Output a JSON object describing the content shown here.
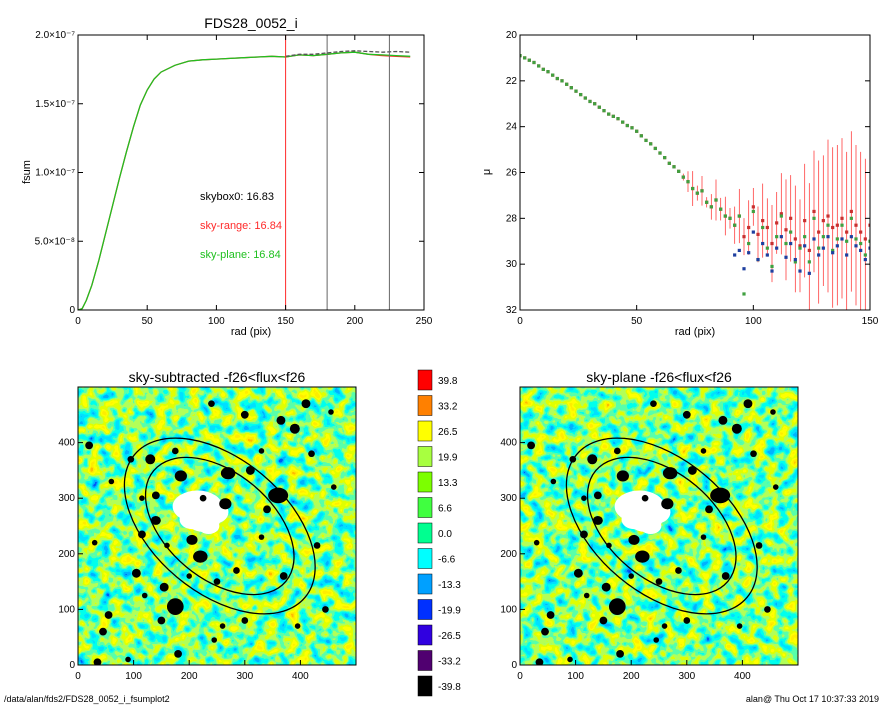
{
  "footer": {
    "path": "/data/alan/fds2/FDS28_0052_i_fsumplot2",
    "stamp": "alan@  Thu Oct 17 10:37:33 2019"
  },
  "chart_data": [
    {
      "id": "fsum",
      "type": "line",
      "title": "FDS28_0052_i",
      "xlabel": "rad (pix)",
      "ylabel": "fsum",
      "xlim": [
        0,
        250
      ],
      "ylim": [
        0,
        2e-07
      ],
      "xticks": [
        "0",
        "50",
        "100",
        "150",
        "200",
        "250"
      ],
      "yticks": [
        "0",
        "5.0×10⁻⁸",
        "1.0×10⁻⁷",
        "1.5×10⁻⁷",
        "2.0×10⁻⁷"
      ],
      "series": [
        {
          "color": "#ff2a2a",
          "x": [
            0,
            3,
            6,
            10,
            15,
            20,
            25,
            30,
            35,
            40,
            45,
            50,
            55,
            60,
            70,
            80,
            90,
            100,
            110,
            120,
            130,
            140,
            150,
            160,
            170,
            180,
            190,
            200,
            210,
            220,
            230,
            240
          ],
          "y": [
            0,
            1e-09,
            7e-09,
            1.8e-08,
            3.6e-08,
            5.6e-08,
            7.6e-08,
            9.6e-08,
            1.15e-07,
            1.33e-07,
            1.49e-07,
            1.6e-07,
            1.68e-07,
            1.73e-07,
            1.78e-07,
            1.81e-07,
            1.82e-07,
            1.825e-07,
            1.83e-07,
            1.835e-07,
            1.84e-07,
            1.845e-07,
            1.84e-07,
            1.855e-07,
            1.85e-07,
            1.86e-07,
            1.87e-07,
            1.875e-07,
            1.86e-07,
            1.85e-07,
            1.845e-07,
            1.84e-07
          ]
        },
        {
          "color": "#20c020",
          "x": [
            0,
            3,
            6,
            10,
            15,
            20,
            25,
            30,
            35,
            40,
            45,
            50,
            55,
            60,
            70,
            80,
            90,
            100,
            110,
            120,
            130,
            140,
            150,
            160,
            170,
            180,
            190,
            200,
            210,
            220,
            230,
            240
          ],
          "y": [
            0,
            1e-09,
            7e-09,
            1.8e-08,
            3.6e-08,
            5.6e-08,
            7.6e-08,
            9.6e-08,
            1.15e-07,
            1.33e-07,
            1.49e-07,
            1.6e-07,
            1.68e-07,
            1.73e-07,
            1.78e-07,
            1.81e-07,
            1.82e-07,
            1.825e-07,
            1.83e-07,
            1.835e-07,
            1.84e-07,
            1.845e-07,
            1.84e-07,
            1.855e-07,
            1.85e-07,
            1.86e-07,
            1.87e-07,
            1.875e-07,
            1.86e-07,
            1.855e-07,
            1.85e-07,
            1.845e-07
          ]
        },
        {
          "color": "#555555",
          "dash": true,
          "x": [
            150,
            160,
            170,
            180,
            190,
            200,
            210,
            220,
            230,
            240
          ],
          "y": [
            1.845e-07,
            1.86e-07,
            1.86e-07,
            1.87e-07,
            1.88e-07,
            1.885e-07,
            1.88e-07,
            1.875e-07,
            1.88e-07,
            1.875e-07
          ]
        }
      ],
      "vlines": [
        {
          "x": 150,
          "color": "#ff2a2a"
        },
        {
          "x": 180,
          "color": "#666666"
        },
        {
          "x": 225,
          "color": "#666666"
        }
      ],
      "annotations": [
        {
          "text": "skybox0: 16.83",
          "color": "#000000"
        },
        {
          "text": "sky-range: 16.84",
          "color": "#ff2a2a"
        },
        {
          "text": "sky-plane: 16.84",
          "color": "#20c020"
        }
      ]
    },
    {
      "id": "mu",
      "type": "scatter",
      "xlabel": "rad (pix)",
      "ylabel": "μ",
      "xlim": [
        0,
        150
      ],
      "ylim": [
        32,
        20
      ],
      "xticks": [
        "0",
        "50",
        "100",
        "150"
      ],
      "yticks": [
        "20",
        "22",
        "24",
        "26",
        "28",
        "30",
        "32"
      ],
      "series": [
        {
          "color": "#c83030",
          "x": [
            0,
            2,
            4,
            6,
            8,
            10,
            12,
            14,
            16,
            18,
            20,
            22,
            24,
            26,
            28,
            30,
            32,
            34,
            36,
            38,
            40,
            42,
            44,
            46,
            48,
            50,
            52,
            54,
            56,
            58,
            60,
            62,
            64,
            66,
            68,
            70,
            72,
            74,
            76,
            78,
            80,
            82,
            84,
            86,
            88,
            90,
            92,
            94,
            96,
            98,
            100,
            102,
            104,
            106,
            108,
            110,
            112,
            114,
            116,
            118,
            120,
            122,
            124,
            126,
            128,
            130,
            132,
            134,
            136,
            138,
            140,
            142,
            144,
            146,
            148,
            150
          ],
          "y": [
            20.9,
            21.0,
            21.1,
            21.2,
            21.35,
            21.5,
            21.6,
            21.75,
            21.9,
            22.0,
            22.15,
            22.3,
            22.45,
            22.6,
            22.75,
            22.9,
            23.0,
            23.15,
            23.3,
            23.45,
            23.55,
            23.65,
            23.8,
            23.95,
            24.05,
            24.2,
            24.4,
            24.6,
            24.75,
            24.95,
            25.15,
            25.35,
            25.6,
            25.75,
            25.95,
            26.2,
            26.4,
            26.7,
            26.9,
            26.8,
            27.3,
            27.5,
            27.2,
            27.6,
            27.9,
            28.0,
            28.3,
            27.9,
            28.8,
            28.4,
            27.5,
            28.7,
            28.1,
            28.4,
            29.1,
            28.2,
            27.8,
            28.5,
            28.0,
            28.9,
            29.2,
            28.1,
            29.4,
            27.7,
            28.6,
            28.1,
            27.9,
            28.4,
            28.3,
            28.0,
            28.6,
            27.7,
            28.3,
            28.6,
            28.9,
            28.3
          ]
        },
        {
          "color": "#40a040",
          "x": [
            0,
            2,
            4,
            6,
            8,
            10,
            12,
            14,
            16,
            18,
            20,
            22,
            24,
            26,
            28,
            30,
            32,
            34,
            36,
            38,
            40,
            42,
            44,
            46,
            48,
            50,
            52,
            54,
            56,
            58,
            60,
            62,
            64,
            66,
            68,
            70,
            72,
            74,
            76,
            78,
            80,
            82,
            84,
            86,
            88,
            90,
            92,
            94,
            96,
            98,
            100,
            102,
            104,
            106,
            108,
            110,
            112,
            114,
            116,
            118,
            120,
            122,
            124,
            126,
            128,
            130,
            132,
            134,
            136,
            138,
            140,
            142,
            144,
            146,
            148,
            150
          ],
          "y": [
            20.9,
            21.0,
            21.1,
            21.2,
            21.35,
            21.5,
            21.6,
            21.75,
            21.9,
            22.0,
            22.15,
            22.3,
            22.45,
            22.6,
            22.75,
            22.9,
            23.0,
            23.15,
            23.3,
            23.45,
            23.55,
            23.65,
            23.8,
            23.95,
            24.05,
            24.2,
            24.4,
            24.6,
            24.75,
            24.95,
            25.15,
            25.35,
            25.6,
            25.75,
            25.95,
            26.2,
            26.4,
            26.7,
            26.9,
            26.8,
            27.3,
            27.5,
            27.2,
            27.6,
            27.9,
            28.0,
            28.3,
            27.9,
            31.3,
            29.1,
            27.7,
            29.8,
            28.4,
            29.3,
            30.1,
            28.8,
            27.9,
            29.1,
            28.6,
            29.9,
            29.3,
            28.8,
            29.9,
            28.0,
            29.3,
            28.8,
            28.3,
            29.4,
            28.9,
            28.3,
            29.0,
            28.0,
            28.9,
            29.1,
            29.6,
            29.0
          ]
        },
        {
          "color": "#1f3f9f",
          "x": [
            92,
            94,
            96,
            98,
            100,
            102,
            104,
            106,
            108,
            110,
            112,
            114,
            116,
            118,
            120,
            122,
            124,
            126,
            128,
            130,
            132,
            134,
            136,
            138,
            140,
            142,
            144,
            146,
            148,
            150
          ],
          "y": [
            29.6,
            29.4,
            30.2,
            29.5,
            28.6,
            29.8,
            29.1,
            29.6,
            30.3,
            29.3,
            28.8,
            29.7,
            29.1,
            29.8,
            30.3,
            29.2,
            30.4,
            28.9,
            29.6,
            29.3,
            28.8,
            29.5,
            29.2,
            28.9,
            29.6,
            28.8,
            29.2,
            29.4,
            29.8,
            29.3
          ]
        }
      ],
      "errorbar_color": "#ff4040"
    },
    {
      "id": "img-left",
      "type": "heatmap",
      "title": "sky-subtracted -f26<flux<f26",
      "xlim": [
        0,
        500
      ],
      "ylim": [
        0,
        500
      ],
      "xticks": [
        "0",
        "100",
        "200",
        "300",
        "400"
      ],
      "yticks": [
        "0",
        "100",
        "200",
        "300",
        "400"
      ],
      "center": [
        255,
        250
      ],
      "ellipses": [
        {
          "a": 200,
          "b": 120,
          "angle": -40
        },
        {
          "a": 155,
          "b": 95,
          "angle": -40
        }
      ]
    },
    {
      "id": "img-right",
      "type": "heatmap",
      "title": "sky-plane -f26<flux<f26",
      "xlim": [
        0,
        500
      ],
      "ylim": [
        0,
        500
      ],
      "xticks": [
        "0",
        "100",
        "200",
        "300",
        "400"
      ],
      "yticks": [
        "0",
        "100",
        "200",
        "300",
        "400"
      ],
      "center": [
        255,
        250
      ],
      "ellipses": [
        {
          "a": 200,
          "b": 120,
          "angle": -40
        },
        {
          "a": 155,
          "b": 95,
          "angle": -40
        }
      ]
    },
    {
      "id": "colorbar",
      "type": "colorbar",
      "labels": [
        "39.8",
        "33.2",
        "26.5",
        "19.9",
        "13.3",
        "6.6",
        "0.0",
        "-6.6",
        "-13.3",
        "-19.9",
        "-26.5",
        "-33.2",
        "-39.8"
      ],
      "colors": [
        "#ff0000",
        "#ff8000",
        "#ffff00",
        "#a8ff40",
        "#7cff00",
        "#40ff40",
        "#00ff90",
        "#00ffff",
        "#00a0ff",
        "#0030ff",
        "#3000e0",
        "#500070",
        "#000000"
      ]
    }
  ]
}
